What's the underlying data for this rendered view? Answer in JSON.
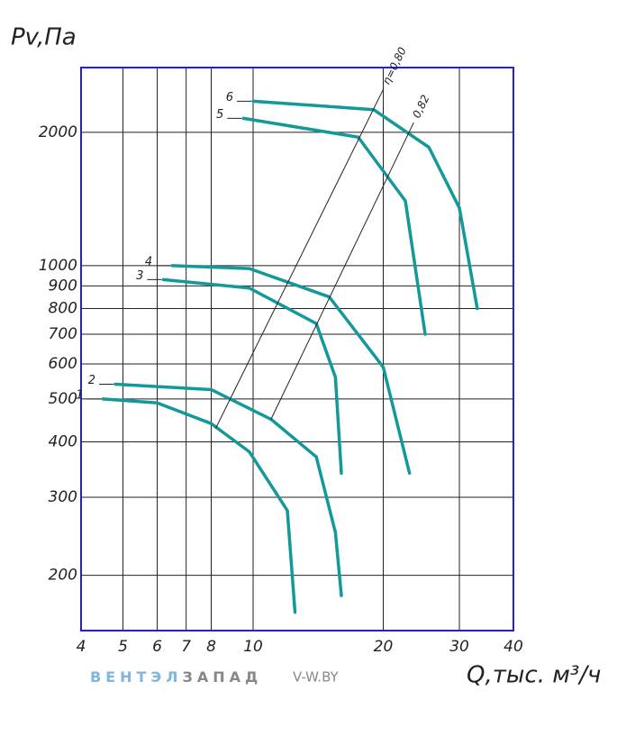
{
  "chart_data": {
    "type": "line",
    "log_x": true,
    "log_y": true,
    "grid": true,
    "y_title": "Pv,Па",
    "x_title": "Q,тыс. м³/ч",
    "brand": [
      "ВЕНТЭЛ",
      "ЗАПАД"
    ],
    "brand_colors": [
      "#7fb6e0",
      "#888888"
    ],
    "site": "V-W.BY",
    "frame_color": "#1f1fe6",
    "grid_color": "#222222",
    "xlim": [
      4,
      40
    ],
    "xticks": [
      4,
      5,
      6,
      7,
      8,
      10,
      20,
      30,
      40
    ],
    "ylim": [
      150,
      2800
    ],
    "yticks": [
      200,
      300,
      400,
      500,
      600,
      700,
      800,
      900,
      1000,
      2000
    ],
    "series": [
      {
        "name": "1",
        "color": "#13999a",
        "line_width": 3.5,
        "x": [
          4.5,
          6,
          8,
          9.8,
          12,
          12.5
        ],
        "values": [
          500,
          490,
          440,
          380,
          280,
          165
        ]
      },
      {
        "name": "2",
        "color": "#13999a",
        "line_width": 3.5,
        "x": [
          4.8,
          8,
          11,
          14,
          15.5,
          16
        ],
        "values": [
          540,
          525,
          450,
          370,
          250,
          180
        ]
      },
      {
        "name": "3",
        "color": "#13999a",
        "line_width": 3.5,
        "x": [
          6.2,
          9.8,
          14,
          15.5,
          16
        ],
        "values": [
          930,
          890,
          740,
          560,
          340
        ]
      },
      {
        "name": "4",
        "color": "#13999a",
        "line_width": 3.5,
        "x": [
          6.5,
          9.8,
          15,
          20,
          23
        ],
        "values": [
          1000,
          985,
          850,
          590,
          340
        ]
      },
      {
        "name": "5",
        "color": "#13999a",
        "line_width": 3.5,
        "x": [
          9.5,
          17.5,
          22.5,
          25
        ],
        "values": [
          2150,
          1950,
          1400,
          700
        ]
      },
      {
        "name": "6",
        "color": "#13999a",
        "line_width": 3.5,
        "x": [
          10,
          19,
          25.5,
          30,
          33
        ],
        "values": [
          2350,
          2250,
          1850,
          1350,
          800
        ]
      },
      {
        "name": "η=0,80",
        "color": "#222222",
        "line_width": 1,
        "x": [
          8.2,
          20
        ],
        "values": [
          430,
          2500
        ]
      },
      {
        "name": "0,82",
        "color": "#222222",
        "line_width": 1,
        "x": [
          11,
          23.5
        ],
        "values": [
          450,
          2100
        ]
      }
    ]
  }
}
